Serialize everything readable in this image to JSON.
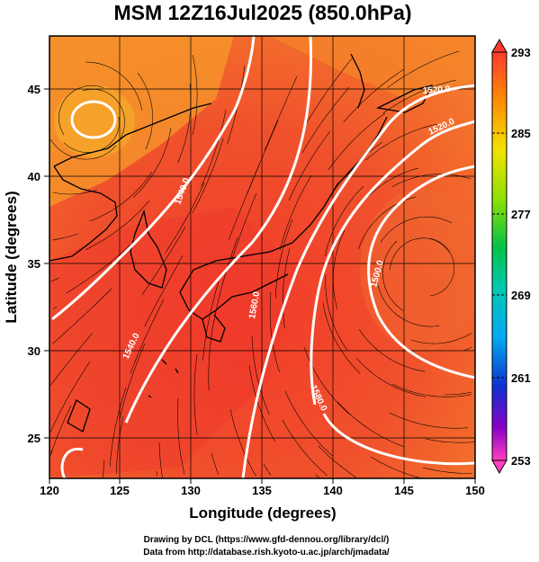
{
  "title": "MSM 12Z16Jul2025 (850.0hPa)",
  "xlabel": "Longitude (degrees)",
  "ylabel": "Latitude  (degrees)",
  "x_ticks": [
    "120",
    "125",
    "130",
    "135",
    "140",
    "145",
    "150"
  ],
  "y_ticks": [
    "25",
    "30",
    "35",
    "40",
    "45"
  ],
  "colorbar": {
    "ticks": [
      "293",
      "285",
      "277",
      "269",
      "261",
      "253"
    ]
  },
  "contour_labels": [
    "1520.0",
    "1540.0",
    "1540.0",
    "1560.0",
    "1580.0",
    "1520.0",
    "1500.0"
  ],
  "credits": {
    "line1": "Drawing by DCL (https://www.gfd-dennou.org/library/dcl/)",
    "line2": "Data from http://database.rish.kyoto-u.ac.jp/arch/jmadata/"
  }
}
